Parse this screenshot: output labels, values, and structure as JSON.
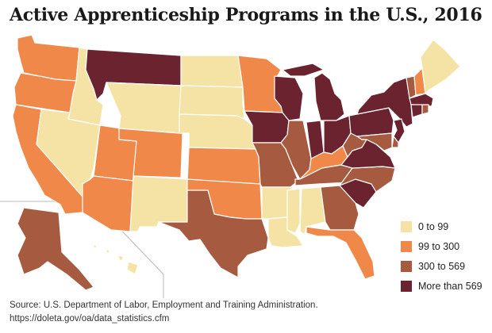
{
  "title": "Active Apprenticeship Programs in the U.S., 2016",
  "legend": {
    "items": [
      {
        "label": "0 to 99",
        "color": "#f4e3a5"
      },
      {
        "label": "99 to 300",
        "color": "#f0884a"
      },
      {
        "label": "300 to 569",
        "color": "#a65a3f"
      },
      {
        "label": "More than 569",
        "color": "#6b2330"
      }
    ]
  },
  "source": {
    "line1": "Source: U.S. Department of Labor, Employment and Training Administration.",
    "line2": "https://doleta.gov/oa/data_statistics.cfm"
  },
  "map_data": {
    "type": "choropleth",
    "categories": [
      "0 to 99",
      "99 to 300",
      "300 to 569",
      "More than 569"
    ],
    "states": {
      "WA": "99 to 300",
      "OR": "99 to 300",
      "CA": "99 to 300",
      "ID": "0 to 99",
      "NV": "0 to 99",
      "UT": "99 to 300",
      "AZ": "99 to 300",
      "MT": "More than 569",
      "WY": "0 to 99",
      "CO": "99 to 300",
      "NM": "0 to 99",
      "ND": "0 to 99",
      "SD": "0 to 99",
      "NE": "0 to 99",
      "KS": "99 to 300",
      "OK": "99 to 300",
      "TX": "300 to 569",
      "MN": "99 to 300",
      "IA": "More than 569",
      "MO": "300 to 569",
      "AR": "0 to 99",
      "LA": "0 to 99",
      "WI": "More than 569",
      "IL": "300 to 569",
      "MI": "More than 569",
      "IN": "More than 569",
      "OH": "More than 569",
      "KY": "99 to 300",
      "TN": "300 to 569",
      "MS": "0 to 99",
      "AL": "0 to 99",
      "GA": "300 to 569",
      "FL": "99 to 300",
      "SC": "More than 569",
      "NC": "300 to 569",
      "VA": "More than 569",
      "WV": "300 to 569",
      "PA": "More than 569",
      "NY": "More than 569",
      "VT": "300 to 569",
      "NH": "99 to 300",
      "ME": "0 to 99",
      "MA": "More than 569",
      "CT": "More than 569",
      "RI": "300 to 569",
      "NJ": "More than 569",
      "DE": "300 to 569",
      "MD": "300 to 569",
      "AK": "300 to 569",
      "HI": "0 to 99"
    }
  }
}
